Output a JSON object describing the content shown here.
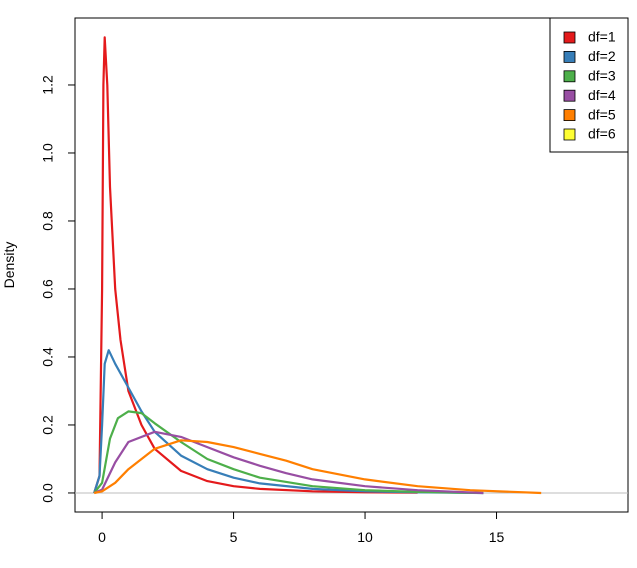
{
  "chart_data": {
    "type": "line",
    "y_label": "Density",
    "xlim": [
      -1.03,
      20.0
    ],
    "ylim": [
      -0.056,
      1.397
    ],
    "xticks": [
      0,
      5,
      10,
      15
    ],
    "yticks": [
      {
        "value": 0,
        "label": "0.0"
      },
      0.2,
      0.4,
      0.6,
      0.8,
      {
        "value": 1,
        "label": "1.0"
      },
      1.2
    ],
    "hline": 0,
    "hline_color": "#bebebe",
    "legend": "top-right",
    "series": [
      {
        "name": "df=1",
        "color": "#e41a1c",
        "x": [
          -0.3,
          -0.1,
          0,
          0.05,
          0.1,
          0.2,
          0.3,
          0.5,
          0.7,
          1,
          1.5,
          2,
          3,
          4,
          5,
          6,
          8,
          10,
          12
        ],
        "values": [
          0,
          0.05,
          0.6,
          1.2,
          1.34,
          1.2,
          0.9,
          0.6,
          0.45,
          0.3,
          0.2,
          0.13,
          0.065,
          0.035,
          0.02,
          0.012,
          0.005,
          0.002,
          0.001
        ]
      },
      {
        "name": "df=2",
        "color": "#377eb8",
        "x": [
          -0.3,
          -0.1,
          0,
          0.1,
          0.25,
          0.5,
          1,
          1.5,
          2,
          3,
          4,
          5,
          6,
          8,
          10,
          12,
          14.5
        ],
        "values": [
          0,
          0.05,
          0.2,
          0.38,
          0.42,
          0.38,
          0.31,
          0.24,
          0.18,
          0.11,
          0.07,
          0.045,
          0.028,
          0.012,
          0.005,
          0.002,
          0
        ]
      },
      {
        "name": "df=3",
        "color": "#4daf4a",
        "x": [
          -0.3,
          0,
          0.3,
          0.6,
          1,
          1.5,
          2,
          3,
          4,
          5,
          6,
          8,
          10,
          12,
          14.5
        ],
        "values": [
          0,
          0.03,
          0.16,
          0.22,
          0.24,
          0.235,
          0.205,
          0.15,
          0.1,
          0.07,
          0.045,
          0.02,
          0.008,
          0.003,
          0
        ]
      },
      {
        "name": "df=4",
        "color": "#984ea3",
        "x": [
          -0.3,
          0,
          0.5,
          1,
          2,
          3,
          4,
          5,
          6,
          7,
          8,
          10,
          12,
          14.5
        ],
        "values": [
          0,
          0.01,
          0.09,
          0.15,
          0.18,
          0.165,
          0.135,
          0.105,
          0.08,
          0.058,
          0.04,
          0.02,
          0.008,
          0
        ]
      },
      {
        "name": "df=5",
        "color": "#ff7f00",
        "x": [
          -0.3,
          0,
          0.5,
          1,
          2,
          3,
          4,
          5,
          6,
          7,
          8,
          10,
          12,
          14,
          16.7
        ],
        "values": [
          0,
          0.005,
          0.03,
          0.07,
          0.13,
          0.155,
          0.15,
          0.135,
          0.115,
          0.095,
          0.07,
          0.04,
          0.02,
          0.008,
          0
        ]
      },
      {
        "name": "df=6",
        "color": "#ffff33",
        "x": [],
        "values": []
      }
    ]
  }
}
